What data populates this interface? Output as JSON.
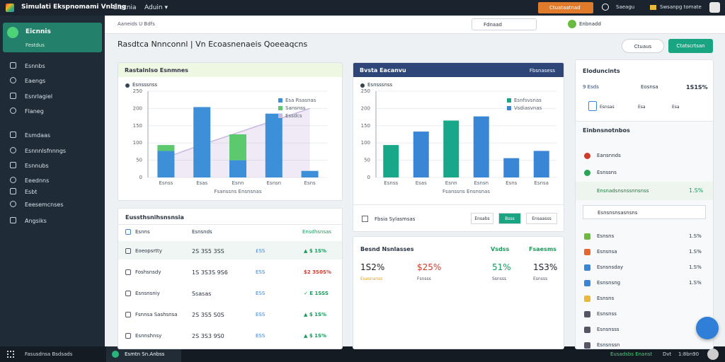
{
  "topbar": {
    "title": "Simulati Ekspnomami Vnbing",
    "menu": [
      "Eibcnia",
      "Aduin ▾"
    ],
    "cta": "Ctuataatnad",
    "user": "Saeagu",
    "account": "Swsanpg tomate"
  },
  "sidebar": {
    "brand": "Eicnnis",
    "brand_sub": "Festdus",
    "items": [
      "Esnnbs",
      "Eaengs",
      "Esnrlagiel",
      "Flaneg",
      "Esmdaas",
      "Esnnnlsfnnngs",
      "Esnnubs",
      "Eeednns",
      "Esbt",
      "Eeesemcnses",
      "Angsiks"
    ]
  },
  "statusbar": {
    "left": "Fasusdnsa Bsdsads",
    "app": "Esmtn Sn.Anbss",
    "right": [
      "Eusadsbs Enanst",
      "Dvt",
      "1:8bn90"
    ]
  },
  "toolbar": {
    "search": "Aaneids U Bdfs",
    "filter": "Fdnaad",
    "select": "Enbnadd"
  },
  "heading": {
    "title": "Rasdtca Nnnconnl | Vn Ecoasnenaeis Qoeeaqcns",
    "actions": [
      "Ctuaus",
      "Ctatscrtsan"
    ]
  },
  "chart_data": [
    {
      "type": "bar",
      "title": "Rastalnlso Esnmnes",
      "subtitle": "Esnsssnss",
      "x_label": "Fsanssns Ensnsnas",
      "categories": [
        "Esnss",
        "Esas",
        "Esnn",
        "Esnsn",
        "Esns"
      ],
      "series": [
        {
          "name": "Esa Rsasnas",
          "color": "#3d8fd8",
          "values": [
            77,
            204,
            50,
            185,
            19
          ]
        },
        {
          "name": "Sansnss",
          "color": "#5cc96e",
          "values": [
            17,
            null,
            75,
            null,
            null
          ]
        }
      ],
      "line": {
        "name": "Essdcs",
        "color": "#c9b9df",
        "values": [
          58,
          95,
          130,
          165,
          200
        ]
      },
      "ylim": [
        0,
        250
      ],
      "yticks": [
        0,
        50,
        100,
        150,
        200,
        250
      ]
    },
    {
      "type": "bar",
      "title": "Bvsta Eacanvu",
      "action": "Fbsnasess",
      "subtitle": "Esnsssnss",
      "x_label": "Fsanssns Ensnsnas",
      "categories": [
        "Esnss",
        "Esas",
        "Esnn",
        "Esnsn",
        "Esns",
        "Esnsa"
      ],
      "series": [
        {
          "name": "Esnfsvsnas",
          "color": "#19a78a",
          "values": [
            94,
            null,
            165,
            null,
            null,
            null
          ]
        },
        {
          "name": "Vsdiasvnas",
          "color": "#3a86d6",
          "values": [
            null,
            133,
            null,
            177,
            56,
            77
          ]
        }
      ],
      "ylim": [
        0,
        250
      ],
      "yticks": [
        0,
        50,
        100,
        150,
        200,
        250
      ],
      "footer": {
        "label": "Fbsia Sylasmsas",
        "buttons": [
          "Ensabs",
          "Bsss",
          "Ensaasss"
        ]
      }
    }
  ],
  "table": {
    "title": "Eussthsnihsnsnsia",
    "columns": [
      "Esnns",
      "Esnsnds",
      "Ensdhsnsas"
    ],
    "rows": [
      [
        "Eoeopsrtty",
        "2S 3S5 3SS",
        "£SS",
        "▲ $ 1S%"
      ],
      [
        "Foshsnsdy",
        "1S 3S3S 9S6",
        "ESS",
        "$2 3S0S%"
      ],
      [
        "Esnsnsniy",
        "Ssasas",
        "ESS",
        "✓ E 1SSS"
      ],
      [
        "Fsnnsa Sashsnsa",
        "2S 3S5 S0S",
        "ESS",
        "▲ $ 1S%"
      ],
      [
        "Esnnshnsy",
        "2S 3S3 9S0",
        "ESS",
        "▲ $ 1S%"
      ]
    ]
  },
  "summary": {
    "title": "Besnd Nsnlasses",
    "columns": [
      "Vsdss",
      "Fsaesms"
    ],
    "items": [
      {
        "value": "1S2%",
        "label": "Esasnanss"
      },
      {
        "value": "$25%",
        "label": "Fsnsss"
      },
      {
        "value": "51%",
        "label": "Ssnsss"
      },
      {
        "value": "1S3%",
        "label": "Esnsss"
      }
    ]
  },
  "panel": {
    "title": "Eloduncints",
    "stats": [
      "9 Esds",
      "Eosnsa",
      "1S1S%"
    ],
    "stats2": [
      "Esnsas",
      "Esa",
      "Esa"
    ],
    "title2": "Einbnsnotnbos",
    "items": [
      "Eansnnds",
      "Esnssns"
    ],
    "highlight": [
      "Ensnadsnsnssnnsnss",
      "1.S%"
    ],
    "input": "Esnsnsnsasnsns",
    "list": [
      [
        "Esnsns",
        "1.S%"
      ],
      [
        "Esnsnsa",
        "1.S%"
      ],
      [
        "Esnsnsday",
        "1.S%"
      ],
      [
        "Esnsnsng",
        "1.S%"
      ],
      [
        "Esnsns",
        null
      ],
      [
        "Esnsnss",
        null
      ],
      [
        "Esnsnsss",
        null
      ],
      [
        "Esnsnssn",
        null
      ]
    ]
  }
}
